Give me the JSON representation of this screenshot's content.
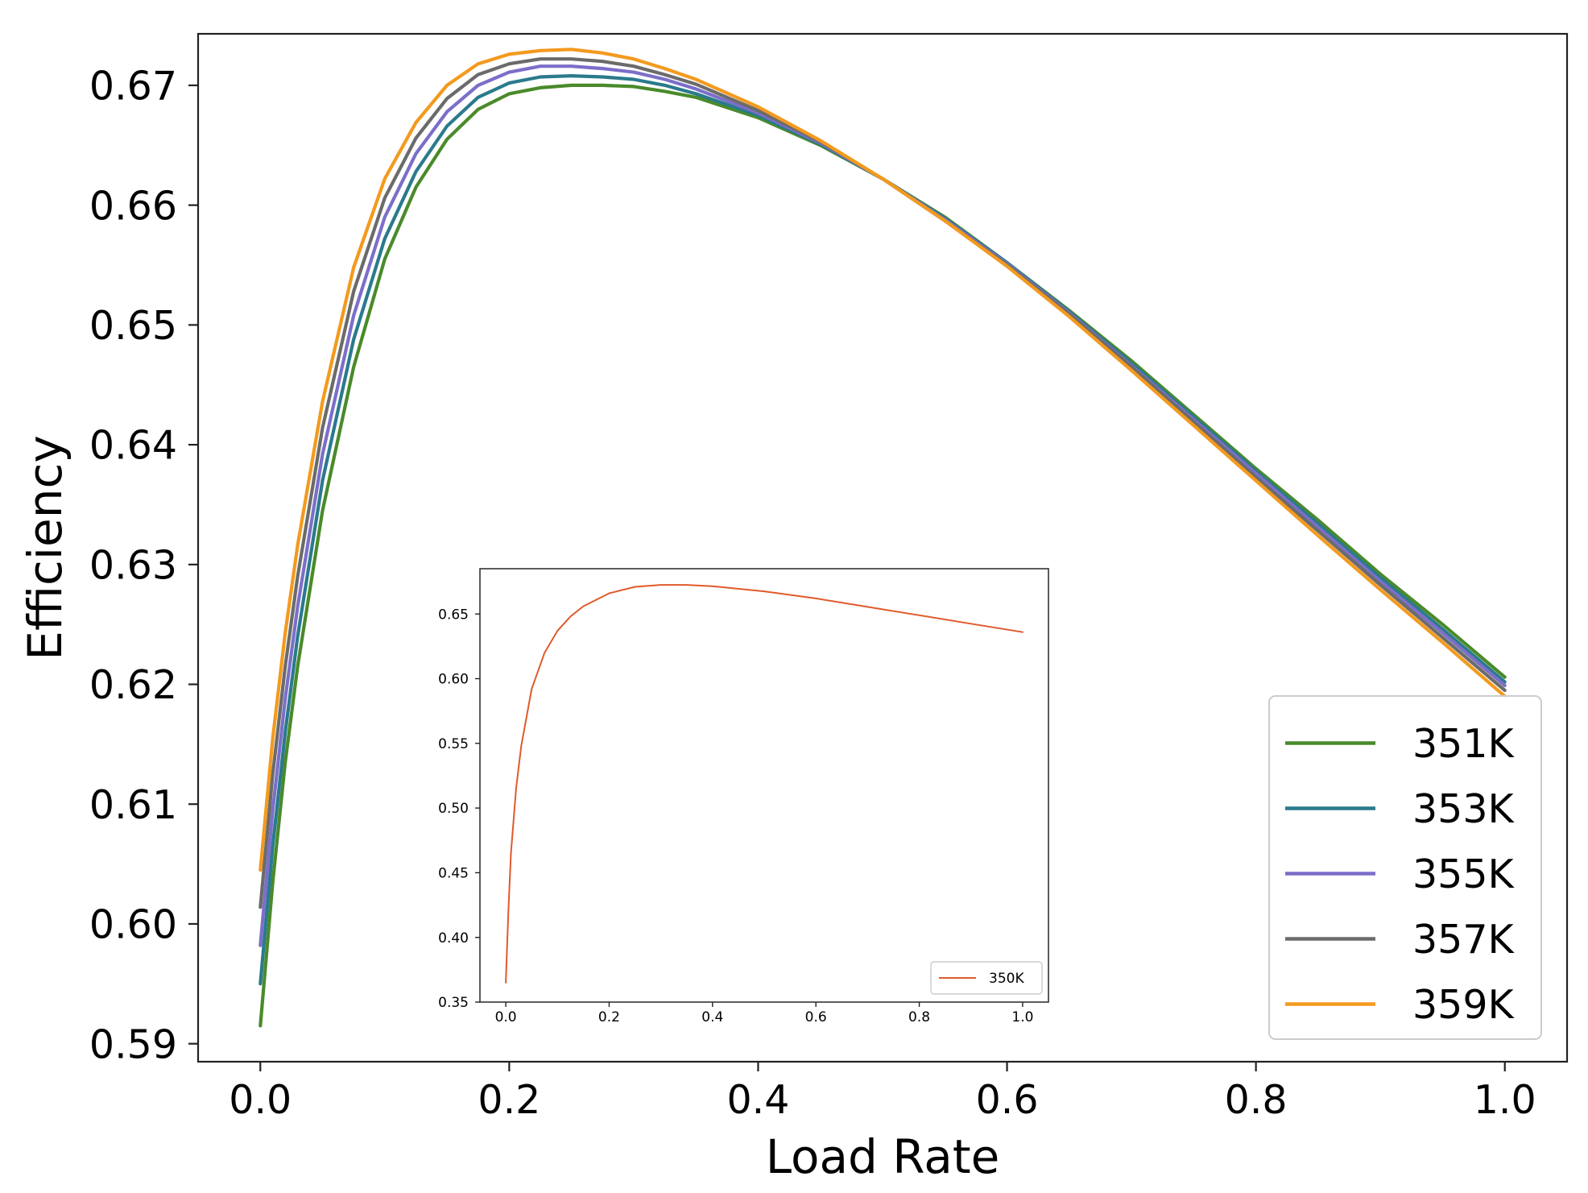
{
  "chart_data": [
    {
      "type": "line",
      "title": "",
      "xlabel": "Load Rate",
      "ylabel": "Efficiency",
      "xlim": [
        -0.05,
        1.05
      ],
      "ylim": [
        0.5885,
        0.6743
      ],
      "xticks": [
        0.0,
        0.2,
        0.4,
        0.6,
        0.8,
        1.0
      ],
      "xtick_labels": [
        "0.0",
        "0.2",
        "0.4",
        "0.6",
        "0.8",
        "1.0"
      ],
      "yticks": [
        0.59,
        0.6,
        0.61,
        0.62,
        0.63,
        0.64,
        0.65,
        0.66,
        0.67
      ],
      "ytick_labels": [
        "0.59",
        "0.60",
        "0.61",
        "0.62",
        "0.63",
        "0.64",
        "0.65",
        "0.66",
        "0.67"
      ],
      "grid": false,
      "legend_position": "lower-right",
      "series": [
        {
          "name": "351K",
          "color": "#4a8a2a",
          "x": [
            0.0,
            0.01,
            0.02,
            0.03,
            0.05,
            0.075,
            0.1,
            0.125,
            0.15,
            0.175,
            0.2,
            0.225,
            0.25,
            0.275,
            0.3,
            0.325,
            0.35,
            0.4,
            0.45,
            0.5,
            0.55,
            0.6,
            0.65,
            0.7,
            0.75,
            0.8,
            0.85,
            0.9,
            0.95,
            1.0
          ],
          "y": [
            0.5915,
            0.6035,
            0.6135,
            0.6215,
            0.6345,
            0.6465,
            0.6555,
            0.6615,
            0.6655,
            0.668,
            0.6693,
            0.6698,
            0.67,
            0.67,
            0.6699,
            0.6695,
            0.669,
            0.6673,
            0.665,
            0.6622,
            0.659,
            0.6552,
            0.6512,
            0.647,
            0.6425,
            0.638,
            0.6337,
            0.6292,
            0.625,
            0.6206
          ]
        },
        {
          "name": "353K",
          "color": "#2a7a8c",
          "x": [
            0.0,
            0.01,
            0.02,
            0.03,
            0.05,
            0.075,
            0.1,
            0.125,
            0.15,
            0.175,
            0.2,
            0.225,
            0.25,
            0.275,
            0.3,
            0.325,
            0.35,
            0.4,
            0.45,
            0.5,
            0.55,
            0.6,
            0.65,
            0.7,
            0.75,
            0.8,
            0.85,
            0.9,
            0.95,
            1.0
          ],
          "y": [
            0.595,
            0.6065,
            0.616,
            0.624,
            0.637,
            0.6488,
            0.6572,
            0.6628,
            0.6666,
            0.669,
            0.6702,
            0.6707,
            0.6708,
            0.6707,
            0.6705,
            0.67,
            0.6693,
            0.6675,
            0.6651,
            0.6622,
            0.6589,
            0.6552,
            0.6511,
            0.6468,
            0.6423,
            0.6378,
            0.6334,
            0.6289,
            0.6246,
            0.6202
          ]
        },
        {
          "name": "355K",
          "color": "#7b6fc9",
          "x": [
            0.0,
            0.01,
            0.02,
            0.03,
            0.05,
            0.075,
            0.1,
            0.125,
            0.15,
            0.175,
            0.2,
            0.225,
            0.25,
            0.275,
            0.3,
            0.325,
            0.35,
            0.4,
            0.45,
            0.5,
            0.55,
            0.6,
            0.65,
            0.7,
            0.75,
            0.8,
            0.85,
            0.9,
            0.95,
            1.0
          ],
          "y": [
            0.5982,
            0.6095,
            0.6188,
            0.6265,
            0.6392,
            0.6508,
            0.659,
            0.6643,
            0.6678,
            0.67,
            0.6711,
            0.6716,
            0.6716,
            0.6714,
            0.6711,
            0.6705,
            0.6697,
            0.6677,
            0.6652,
            0.6622,
            0.6588,
            0.6551,
            0.651,
            0.6466,
            0.6421,
            0.6376,
            0.6331,
            0.6286,
            0.6243,
            0.6199
          ]
        },
        {
          "name": "357K",
          "color": "#6b6b6b",
          "x": [
            0.0,
            0.01,
            0.02,
            0.03,
            0.05,
            0.075,
            0.1,
            0.125,
            0.15,
            0.175,
            0.2,
            0.225,
            0.25,
            0.275,
            0.3,
            0.325,
            0.35,
            0.4,
            0.45,
            0.5,
            0.55,
            0.6,
            0.65,
            0.7,
            0.75,
            0.8,
            0.85,
            0.9,
            0.95,
            1.0
          ],
          "y": [
            0.6014,
            0.6125,
            0.6215,
            0.629,
            0.6414,
            0.6528,
            0.6606,
            0.6656,
            0.6689,
            0.6709,
            0.6718,
            0.6722,
            0.6722,
            0.672,
            0.6716,
            0.6709,
            0.6701,
            0.6679,
            0.6653,
            0.6622,
            0.6587,
            0.655,
            0.6509,
            0.6465,
            0.6419,
            0.6373,
            0.6328,
            0.6283,
            0.6239,
            0.6195
          ]
        },
        {
          "name": "359K",
          "color": "#f39a1e",
          "x": [
            0.0,
            0.01,
            0.02,
            0.03,
            0.05,
            0.075,
            0.1,
            0.125,
            0.15,
            0.175,
            0.2,
            0.225,
            0.25,
            0.275,
            0.3,
            0.325,
            0.35,
            0.4,
            0.45,
            0.5,
            0.55,
            0.6,
            0.65,
            0.7,
            0.75,
            0.8,
            0.85,
            0.9,
            0.95,
            1.0
          ],
          "y": [
            0.6045,
            0.6155,
            0.6243,
            0.6316,
            0.6436,
            0.6548,
            0.6622,
            0.6669,
            0.67,
            0.6718,
            0.6726,
            0.6729,
            0.673,
            0.6727,
            0.6722,
            0.6714,
            0.6705,
            0.6682,
            0.6654,
            0.6622,
            0.6587,
            0.6549,
            0.6507,
            0.6462,
            0.6416,
            0.637,
            0.6324,
            0.6279,
            0.6235,
            0.619
          ]
        }
      ]
    },
    {
      "type": "line",
      "title": "",
      "xlabel": "",
      "ylabel": "",
      "xlim": [
        -0.05,
        1.05
      ],
      "ylim": [
        0.35,
        0.685
      ],
      "xticks": [
        0.0,
        0.2,
        0.4,
        0.6,
        0.8,
        1.0
      ],
      "xtick_labels": [
        "0.0",
        "0.2",
        "0.4",
        "0.6",
        "0.8",
        "1.0"
      ],
      "yticks": [
        0.35,
        0.4,
        0.45,
        0.5,
        0.55,
        0.6,
        0.65
      ],
      "ytick_labels": [
        "0.35",
        "0.40",
        "0.45",
        "0.50",
        "0.55",
        "0.60",
        "0.65"
      ],
      "grid": false,
      "legend_position": "lower-right",
      "series": [
        {
          "name": "350K",
          "color": "#e05a2b",
          "x": [
            0.0,
            0.005,
            0.01,
            0.02,
            0.03,
            0.05,
            0.075,
            0.1,
            0.125,
            0.15,
            0.2,
            0.25,
            0.3,
            0.35,
            0.4,
            0.5,
            0.6,
            0.7,
            0.8,
            0.9,
            1.0
          ],
          "y": [
            0.365,
            0.42,
            0.465,
            0.515,
            0.548,
            0.592,
            0.62,
            0.637,
            0.648,
            0.656,
            0.666,
            0.671,
            0.6725,
            0.6725,
            0.6715,
            0.6675,
            0.662,
            0.6555,
            0.649,
            0.6425,
            0.636
          ]
        }
      ]
    }
  ]
}
